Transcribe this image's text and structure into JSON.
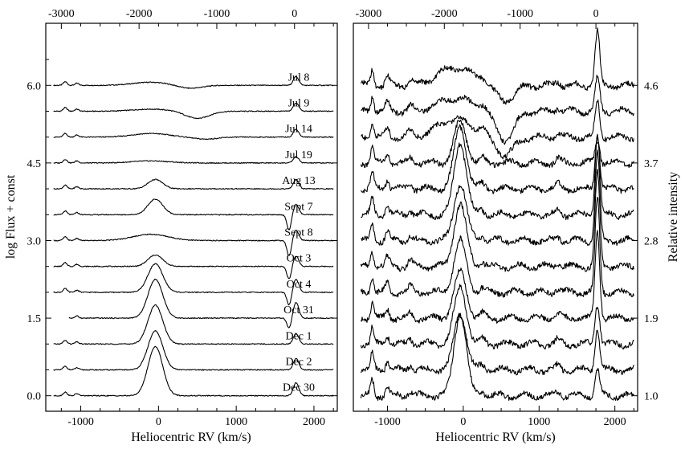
{
  "chart_data": [
    {
      "type": "line",
      "panel": "left",
      "xlabel": "Heliocentric RV  (km/s)",
      "ylabel": "log Flux + const",
      "xlim": [
        -1450,
        2300
      ],
      "ylim": [
        -0.3,
        7.2
      ],
      "x_ticks": [
        -1000,
        0,
        1000,
        2000
      ],
      "x_tick_labels": [
        "-1000",
        "0",
        "1000",
        "2000"
      ],
      "y_ticks": [
        0.0,
        1.5,
        3.0,
        4.5,
        6.0
      ],
      "y_tick_labels": [
        "0.0",
        "1.5",
        "3.0",
        "4.5",
        "6.0"
      ],
      "top_axis_ticks": [
        -3000,
        -2000,
        -1000,
        0
      ],
      "top_axis_tick_labels": [
        "-3000",
        "-2000",
        "-1000",
        "0"
      ],
      "top_axis_offset_kms": 1750,
      "features": {
        "emission_center_kms": -40,
        "rest_line_kms": 1750,
        "secondary_line_kms": -1200
      },
      "series": [
        {
          "name": "Jul 8",
          "baseline": 6.0,
          "x_start": -1350,
          "x_end": 2250,
          "emission_height": 0.0,
          "broad_hump": 0.06,
          "dip_center_kms": 400,
          "dip_depth": 0.06,
          "line_height": 0.17,
          "abs_depth": 0.0
        },
        {
          "name": "Jul 9",
          "baseline": 5.5,
          "x_start": -1350,
          "x_end": 2250,
          "emission_height": 0.0,
          "broad_hump": 0.04,
          "dip_center_kms": 500,
          "dip_depth": 0.14,
          "line_height": 0.16,
          "abs_depth": 0.0
        },
        {
          "name": "Jul 14",
          "baseline": 5.0,
          "x_start": -1350,
          "x_end": 2250,
          "emission_height": 0.0,
          "broad_hump": 0.07,
          "dip_center_kms": 600,
          "dip_depth": 0.04,
          "line_height": 0.15,
          "abs_depth": 0.0
        },
        {
          "name": "Jul 19",
          "baseline": 4.5,
          "x_start": -1350,
          "x_end": 2250,
          "emission_height": 0.0,
          "broad_hump": 0.04,
          "dip_center_kms": 600,
          "dip_depth": 0.0,
          "line_height": 0.12,
          "abs_depth": 0.0
        },
        {
          "name": "Aug 13",
          "baseline": 4.0,
          "x_start": -1350,
          "x_end": 2250,
          "emission_height": 0.18,
          "broad_hump": 0.0,
          "dip_center_kms": 600,
          "dip_depth": 0.0,
          "line_height": 0.18,
          "abs_depth": 0.0
        },
        {
          "name": "Sept 7",
          "baseline": 3.5,
          "x_start": -1350,
          "x_end": 2250,
          "emission_height": 0.3,
          "broad_hump": 0.0,
          "dip_center_kms": 600,
          "dip_depth": 0.0,
          "line_height": 0.2,
          "abs_depth": 0.3
        },
        {
          "name": "Sept 8",
          "baseline": 3.0,
          "x_start": -1350,
          "x_end": 2250,
          "emission_height": 0.0,
          "broad_hump": 0.12,
          "dip_center_kms": 600,
          "dip_depth": 0.0,
          "line_height": 0.2,
          "abs_depth": 0.3
        },
        {
          "name": "Oct 3",
          "baseline": 2.5,
          "x_start": -1350,
          "x_end": 2250,
          "emission_height": 0.22,
          "broad_hump": 0.0,
          "dip_center_kms": 600,
          "dip_depth": 0.0,
          "line_height": 0.2,
          "abs_depth": 0.25
        },
        {
          "name": "Oct 4",
          "baseline": 2.0,
          "x_start": -1350,
          "x_end": 2250,
          "emission_height": 0.55,
          "broad_hump": 0.0,
          "dip_center_kms": 600,
          "dip_depth": 0.0,
          "line_height": 0.25,
          "abs_depth": 0.25
        },
        {
          "name": "Oct 31",
          "baseline": 1.5,
          "x_start": -1150,
          "x_end": 2250,
          "emission_height": 0.75,
          "broad_hump": 0.0,
          "dip_center_kms": 600,
          "dip_depth": 0.0,
          "line_height": 0.3,
          "abs_depth": 0.2
        },
        {
          "name": "Dec 1",
          "baseline": 1.0,
          "x_start": -1350,
          "x_end": 2250,
          "emission_height": 0.75,
          "broad_hump": 0.0,
          "dip_center_kms": 600,
          "dip_depth": 0.0,
          "line_height": 0.2,
          "abs_depth": 0.0
        },
        {
          "name": "Dec 2",
          "baseline": 0.5,
          "x_start": -1350,
          "x_end": 2250,
          "emission_height": 0.75,
          "broad_hump": 0.0,
          "dip_center_kms": 600,
          "dip_depth": 0.0,
          "line_height": 0.22,
          "abs_depth": 0.0
        },
        {
          "name": "Dec 30",
          "baseline": 0.0,
          "x_start": -1350,
          "x_end": 2250,
          "emission_height": 0.95,
          "broad_hump": 0.0,
          "dip_center_kms": 600,
          "dip_depth": 0.0,
          "line_height": 0.25,
          "abs_depth": 0.0
        }
      ]
    },
    {
      "type": "line",
      "panel": "right",
      "xlabel": "Heliocentric RV  (km/s)",
      "ylabel": "Relative intensity",
      "xlim": [
        -1450,
        2300
      ],
      "ylim": [
        -0.3,
        7.2
      ],
      "x_ticks": [
        -1000,
        0,
        1000,
        2000
      ],
      "x_tick_labels": [
        "-1000",
        "0",
        "1000",
        "2000"
      ],
      "right_axis_ticks_at_log": [
        0.0,
        1.5,
        3.0,
        4.5,
        6.0
      ],
      "right_axis_tick_labels": [
        "1.0",
        "1.9",
        "2.8",
        "3.7",
        "4.6"
      ],
      "top_axis_ticks": [
        -3000,
        -2000,
        -1000,
        0
      ],
      "top_axis_tick_labels": [
        "-3000",
        "-2000",
        "-1000",
        "0"
      ],
      "top_axis_offset_kms": 1750,
      "series": [
        {
          "name": "Jul 8",
          "baseline": 6.0,
          "emission_height": 0.0,
          "broad_hump": 0.35,
          "line_height": 1.05,
          "dip_depth": 0.3
        },
        {
          "name": "Jul 9",
          "baseline": 5.5,
          "emission_height": 0.0,
          "broad_hump": 0.25,
          "line_height": 0.65,
          "dip_depth": 0.55
        },
        {
          "name": "Jul 14",
          "baseline": 5.0,
          "emission_height": 0.0,
          "broad_hump": 0.35,
          "line_height": 0.7,
          "dip_depth": 0.35
        },
        {
          "name": "Jul 19",
          "baseline": 4.5,
          "emission_height": 0.8,
          "broad_hump": 0.0,
          "line_height": 0.45,
          "dip_depth": 0.0
        },
        {
          "name": "Aug 13",
          "baseline": 4.0,
          "emission_height": 1.2,
          "broad_hump": 0.0,
          "line_height": 1.05,
          "dip_depth": 0.0
        },
        {
          "name": "Sept 7",
          "baseline": 3.5,
          "emission_height": 1.4,
          "broad_hump": 0.0,
          "line_height": 1.6,
          "dip_depth": 0.0
        },
        {
          "name": "Sept 8",
          "baseline": 3.0,
          "emission_height": 1.1,
          "broad_hump": 0.0,
          "line_height": 1.7,
          "dip_depth": 0.0
        },
        {
          "name": "Oct 3",
          "baseline": 2.5,
          "emission_height": 1.2,
          "broad_hump": 0.0,
          "line_height": 1.8,
          "dip_depth": 0.0
        },
        {
          "name": "Oct 4",
          "baseline": 2.0,
          "emission_height": 1.0,
          "broad_hump": 0.0,
          "line_height": 1.8,
          "dip_depth": 0.0
        },
        {
          "name": "Oct 31",
          "baseline": 1.5,
          "emission_height": 0.9,
          "broad_hump": 0.0,
          "line_height": 1.7,
          "dip_depth": 0.0
        },
        {
          "name": "Dec 1",
          "baseline": 1.0,
          "emission_height": 1.1,
          "broad_hump": 0.0,
          "line_height": 0.8,
          "dip_depth": 0.0
        },
        {
          "name": "Dec 2",
          "baseline": 0.5,
          "emission_height": 1.1,
          "broad_hump": 0.0,
          "line_height": 0.8,
          "dip_depth": 0.0
        },
        {
          "name": "Dec 30",
          "baseline": 0.0,
          "emission_height": 1.6,
          "broad_hump": 0.0,
          "line_height": 0.5,
          "dip_depth": 0.0
        }
      ]
    }
  ]
}
